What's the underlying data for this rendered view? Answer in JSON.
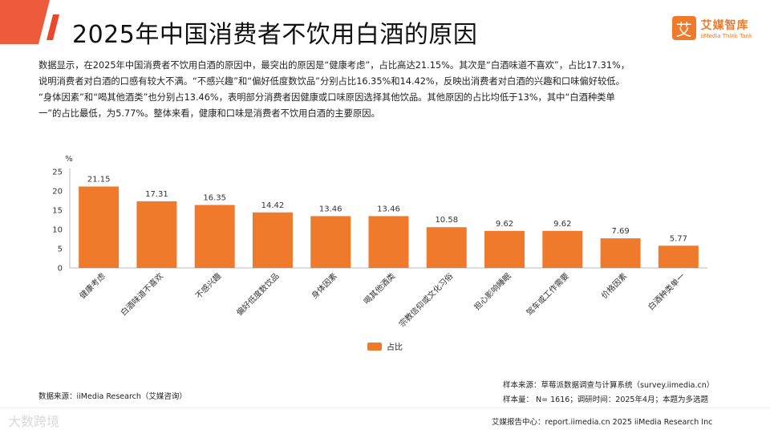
{
  "page": {
    "title": "2025年中国消费者不饮用白酒的原因",
    "logo": {
      "name": "艾媒智库",
      "subtitle": "iiMedia Think Tank",
      "mark": "艾"
    },
    "paragraph": [
      "数据显示，在2025年中国消费者不饮用白酒的原因中，最突出的原因是“健康考虑”，占比高达21.15%。其次是“白酒味道不喜欢”，占比17.31%，",
      "说明消费者对白酒的口感有较大不满。“不感兴趣”和“偏好低度数饮品”分别占比16.35%和14.42%，反映出消费者对白酒的兴趣和口味偏好较低。",
      "“身体因素”和“喝其他酒类”也分别占13.46%，表明部分消费者因健康或口味原因选择其他饮品。其他原因的占比均低于13%，其中“白酒种类单",
      "一”的占比最低，为5.77%。整体来看，健康和口味是消费者不饮用白酒的主要原因。"
    ],
    "source": "数据来源：iiMedia Research（艾媒咨询）",
    "sample_source": "样本来源：草莓派数据调查与计算系统（survey.iimedia.cn）",
    "sample_size": "样本量： N= 1616；调研时间：2025年4月；本题为多选题",
    "footer": "艾媒报告中心：report.iimedia.cn    2025 iiMedia Research Inc",
    "watermark": "大数跨境"
  },
  "colors": {
    "bar": "#f07a2c",
    "accent": "#f07a2c",
    "slash": "#e8492c"
  },
  "chart_data": {
    "type": "bar",
    "ylabel": "%",
    "ylim": [
      0,
      25
    ],
    "yticks": [
      0,
      5,
      10,
      15,
      20,
      25
    ],
    "grid": false,
    "legend": "bottom-center",
    "categories": [
      "健康考虑",
      "白酒味道不喜欢",
      "不感兴趣",
      "偏好低度数饮品",
      "身体因素",
      "喝其他酒类",
      "宗教信仰或文化习俗",
      "担心影响睡眠",
      "驾车或工作需要",
      "价格因素",
      "白酒种类单一"
    ],
    "series": [
      {
        "name": "占比",
        "values": [
          21.15,
          17.31,
          16.35,
          14.42,
          13.46,
          13.46,
          10.58,
          9.62,
          9.62,
          7.69,
          5.77
        ]
      }
    ],
    "value_labels": [
      "21.15",
      "17.31",
      "16.35",
      "14.42",
      "13.46",
      "13.46",
      "10.58",
      "9.62",
      "9.62",
      "7.69",
      "5.77"
    ]
  }
}
